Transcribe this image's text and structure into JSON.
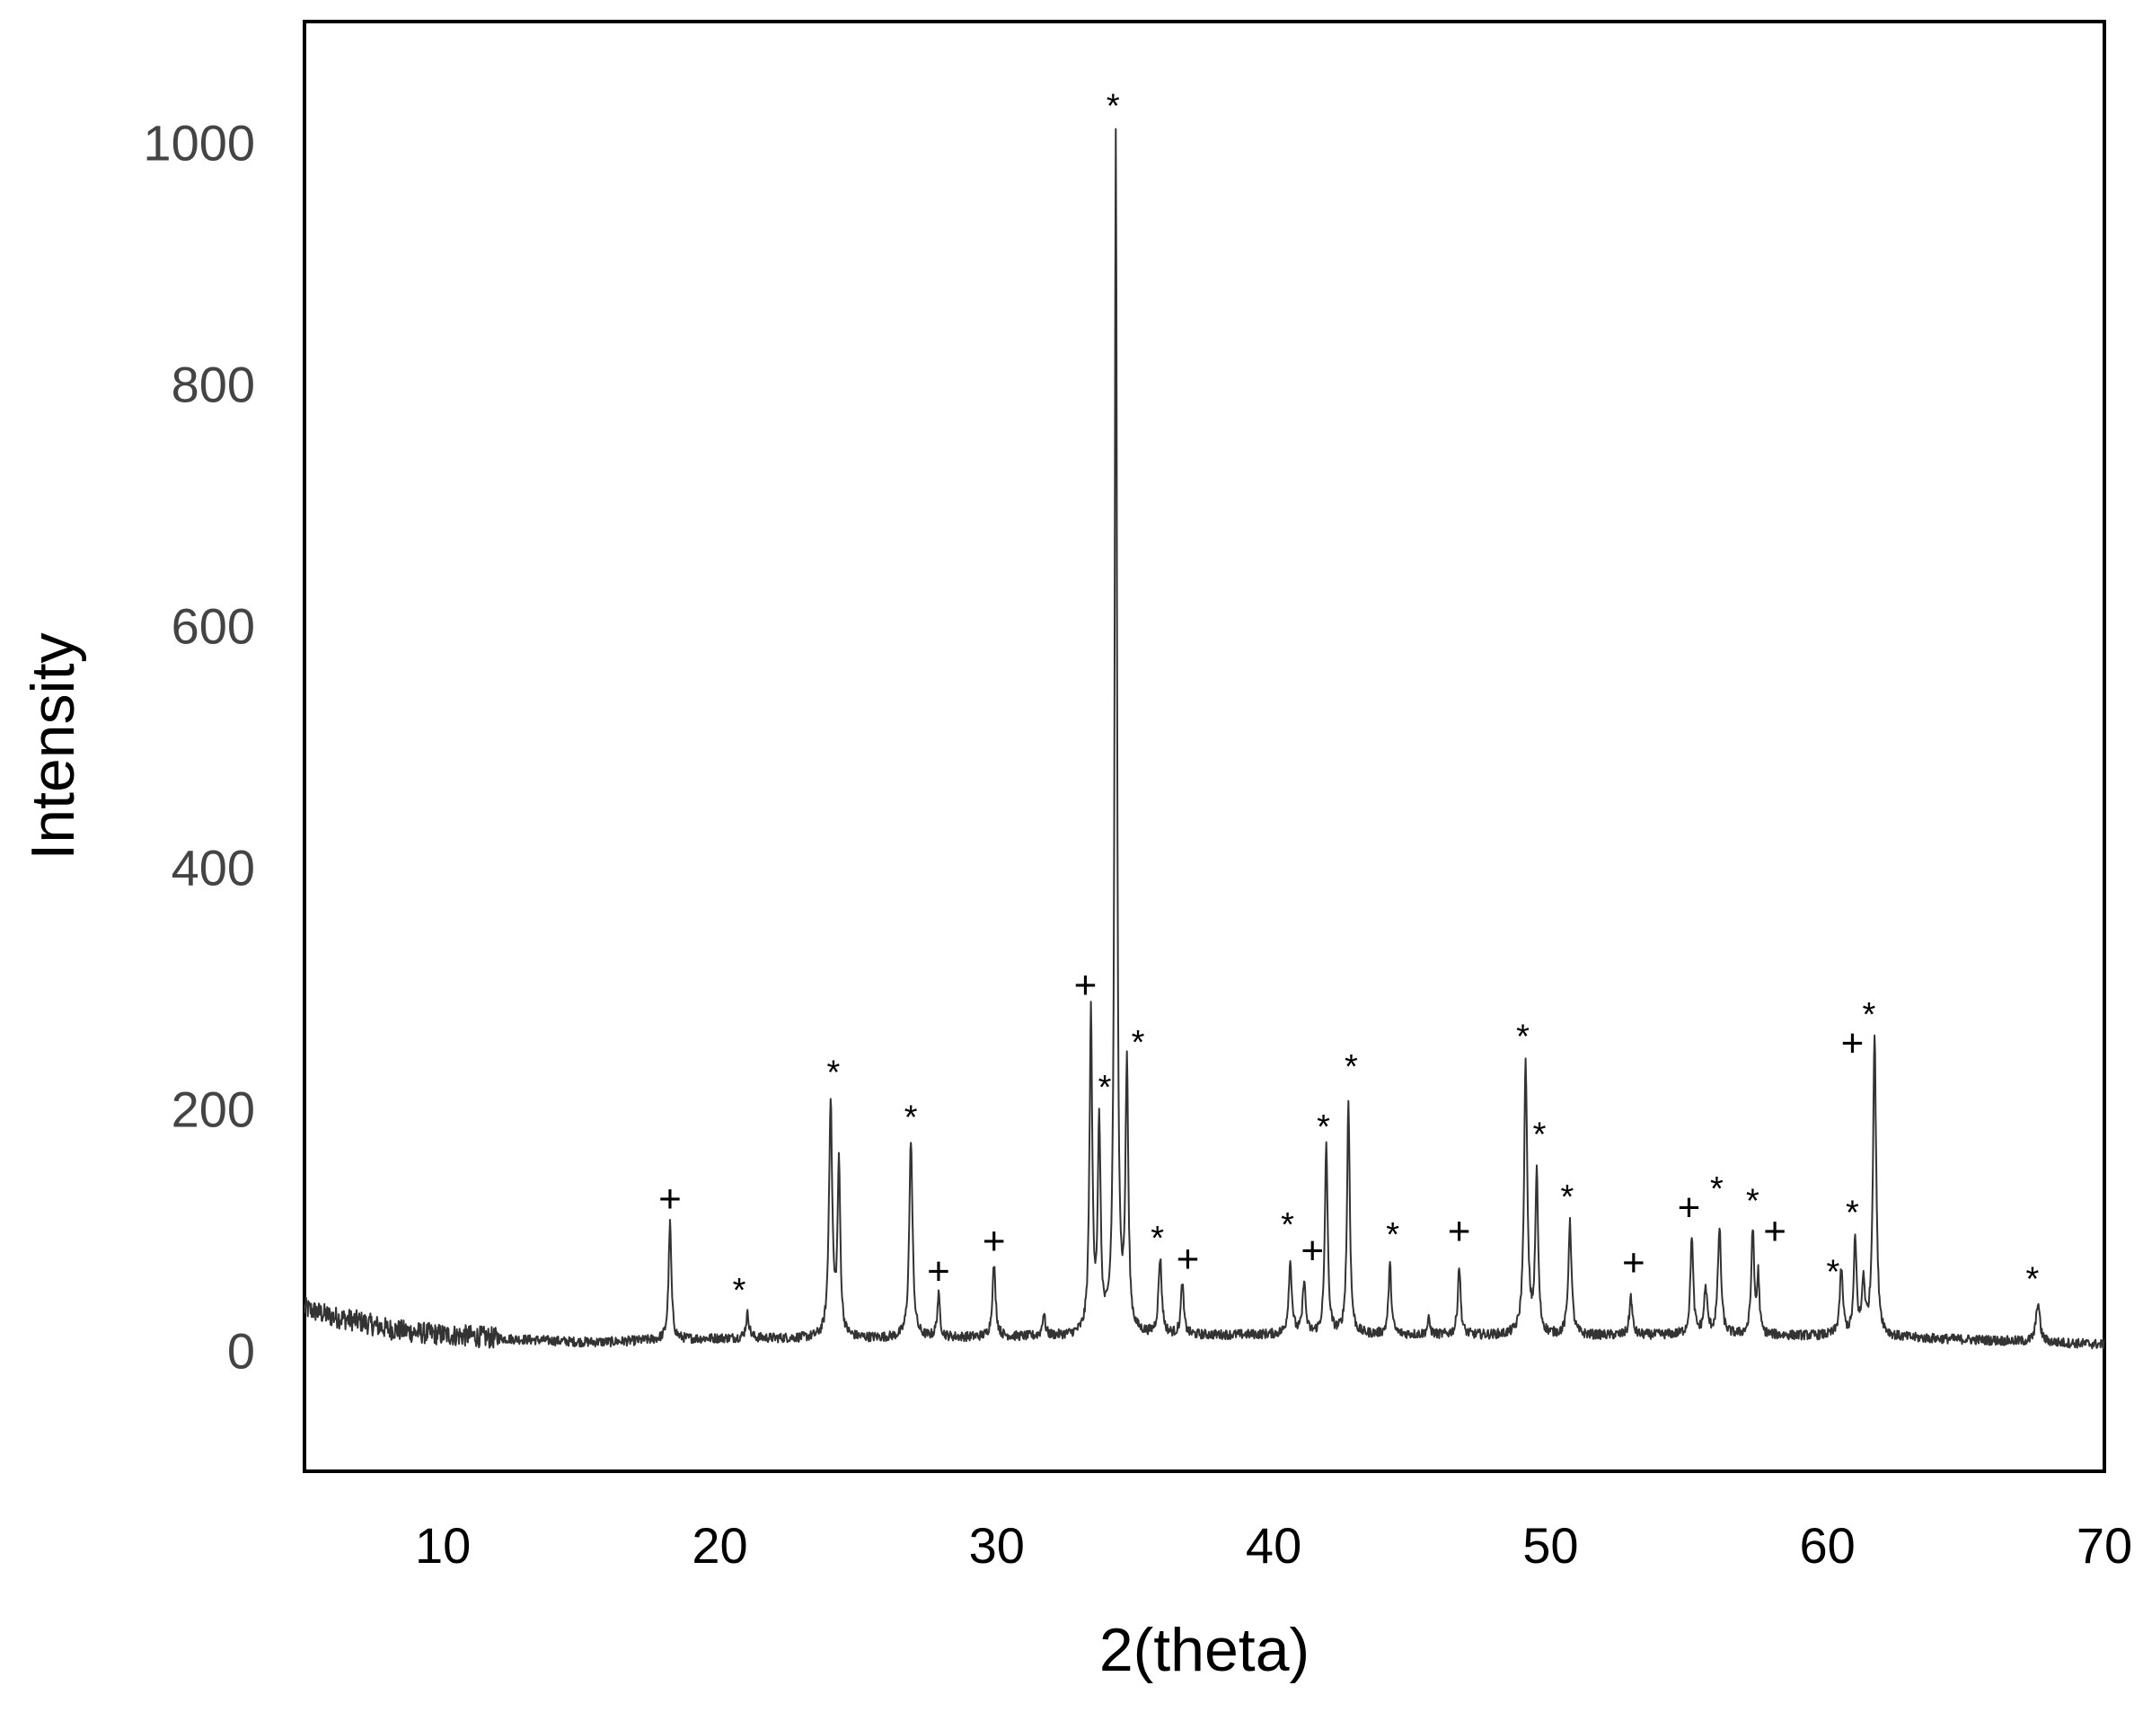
{
  "chart_data": {
    "type": "line",
    "title": "",
    "xlabel": "2(theta)",
    "ylabel": "Intensity",
    "xlim": [
      5,
      70
    ],
    "ylim": [
      -100,
      1100
    ],
    "xticks": [
      10,
      20,
      30,
      40,
      50,
      60,
      70
    ],
    "yticks": [
      0,
      200,
      400,
      600,
      800,
      1000
    ],
    "grid": false,
    "legend": "none",
    "line_color": "#333333",
    "background": [
      [
        5,
        35
      ],
      [
        6,
        28
      ],
      [
        7,
        24
      ],
      [
        8,
        18
      ],
      [
        9,
        15
      ],
      [
        10,
        13
      ],
      [
        11,
        12
      ],
      [
        12,
        10
      ],
      [
        13,
        9
      ],
      [
        14,
        8
      ],
      [
        15,
        7
      ],
      [
        16,
        7
      ],
      [
        17,
        8
      ],
      [
        18,
        9
      ],
      [
        20,
        10
      ],
      [
        25,
        10
      ],
      [
        30,
        11
      ],
      [
        35,
        12
      ],
      [
        40,
        13
      ],
      [
        45,
        13
      ],
      [
        50,
        12
      ],
      [
        55,
        13
      ],
      [
        60,
        12
      ],
      [
        65,
        9
      ],
      [
        70,
        5
      ]
    ],
    "peaks": [
      {
        "x": 18.2,
        "y": 105,
        "w": 0.06
      },
      {
        "x": 21.0,
        "y": 30,
        "w": 0.07
      },
      {
        "x": 24.0,
        "y": 205,
        "w": 0.07
      },
      {
        "x": 24.3,
        "y": 150,
        "w": 0.06
      },
      {
        "x": 26.9,
        "y": 175,
        "w": 0.07
      },
      {
        "x": 27.9,
        "y": 45,
        "w": 0.06
      },
      {
        "x": 29.9,
        "y": 70,
        "w": 0.07
      },
      {
        "x": 31.7,
        "y": 30,
        "w": 0.06
      },
      {
        "x": 33.4,
        "y": 275,
        "w": 0.06
      },
      {
        "x": 33.7,
        "y": 180,
        "w": 0.06
      },
      {
        "x": 34.3,
        "y": 1000,
        "w": 0.05
      },
      {
        "x": 34.7,
        "y": 230,
        "w": 0.06
      },
      {
        "x": 35.9,
        "y": 75,
        "w": 0.07
      },
      {
        "x": 36.7,
        "y": 55,
        "w": 0.06
      },
      {
        "x": 40.6,
        "y": 72,
        "w": 0.07
      },
      {
        "x": 41.1,
        "y": 58,
        "w": 0.06
      },
      {
        "x": 41.9,
        "y": 170,
        "w": 0.06
      },
      {
        "x": 42.7,
        "y": 205,
        "w": 0.06
      },
      {
        "x": 44.2,
        "y": 70,
        "w": 0.06
      },
      {
        "x": 45.6,
        "y": 25,
        "w": 0.06
      },
      {
        "x": 46.7,
        "y": 70,
        "w": 0.06
      },
      {
        "x": 49.1,
        "y": 235,
        "w": 0.07
      },
      {
        "x": 49.5,
        "y": 145,
        "w": 0.06
      },
      {
        "x": 50.7,
        "y": 105,
        "w": 0.07
      },
      {
        "x": 52.9,
        "y": 45,
        "w": 0.06
      },
      {
        "x": 55.1,
        "y": 95,
        "w": 0.06
      },
      {
        "x": 55.6,
        "y": 50,
        "w": 0.07
      },
      {
        "x": 56.1,
        "y": 100,
        "w": 0.07
      },
      {
        "x": 57.3,
        "y": 100,
        "w": 0.06
      },
      {
        "x": 57.5,
        "y": 60,
        "w": 0.05
      },
      {
        "x": 60.5,
        "y": 65,
        "w": 0.07
      },
      {
        "x": 61.0,
        "y": 90,
        "w": 0.06
      },
      {
        "x": 61.3,
        "y": 55,
        "w": 0.06
      },
      {
        "x": 61.7,
        "y": 260,
        "w": 0.07
      },
      {
        "x": 67.6,
        "y": 40,
        "w": 0.08
      }
    ],
    "annotations": [
      {
        "text": "+",
        "x": 18.2,
        "y": 125
      },
      {
        "text": "*",
        "x": 20.7,
        "y": 60
      },
      {
        "text": "*",
        "x": 24.1,
        "y": 240
      },
      {
        "text": "*",
        "x": 26.9,
        "y": 203
      },
      {
        "text": "+",
        "x": 27.9,
        "y": 65
      },
      {
        "text": "+",
        "x": 29.9,
        "y": 90
      },
      {
        "text": "+",
        "x": 33.2,
        "y": 302
      },
      {
        "text": "*",
        "x": 34.2,
        "y": 1040
      },
      {
        "text": "*",
        "x": 33.9,
        "y": 228
      },
      {
        "text": "*",
        "x": 35.1,
        "y": 265
      },
      {
        "text": "*",
        "x": 35.8,
        "y": 103
      },
      {
        "text": "+",
        "x": 36.9,
        "y": 75
      },
      {
        "text": "*",
        "x": 40.5,
        "y": 114
      },
      {
        "text": "+",
        "x": 41.4,
        "y": 82
      },
      {
        "text": "*",
        "x": 41.8,
        "y": 195
      },
      {
        "text": "*",
        "x": 42.8,
        "y": 245
      },
      {
        "text": "*",
        "x": 44.3,
        "y": 106
      },
      {
        "text": "+",
        "x": 46.7,
        "y": 98
      },
      {
        "text": "*",
        "x": 49.0,
        "y": 270
      },
      {
        "text": "*",
        "x": 49.6,
        "y": 189
      },
      {
        "text": "*",
        "x": 50.6,
        "y": 137
      },
      {
        "text": "+",
        "x": 53.0,
        "y": 72
      },
      {
        "text": "+",
        "x": 55.0,
        "y": 118
      },
      {
        "text": "*",
        "x": 56.0,
        "y": 144
      },
      {
        "text": "*",
        "x": 57.3,
        "y": 134
      },
      {
        "text": "+",
        "x": 58.1,
        "y": 98
      },
      {
        "text": "*",
        "x": 60.2,
        "y": 75
      },
      {
        "text": "+",
        "x": 60.9,
        "y": 254
      },
      {
        "text": "*",
        "x": 60.9,
        "y": 124
      },
      {
        "text": "*",
        "x": 61.5,
        "y": 288
      },
      {
        "text": "*",
        "x": 67.4,
        "y": 69
      }
    ]
  }
}
